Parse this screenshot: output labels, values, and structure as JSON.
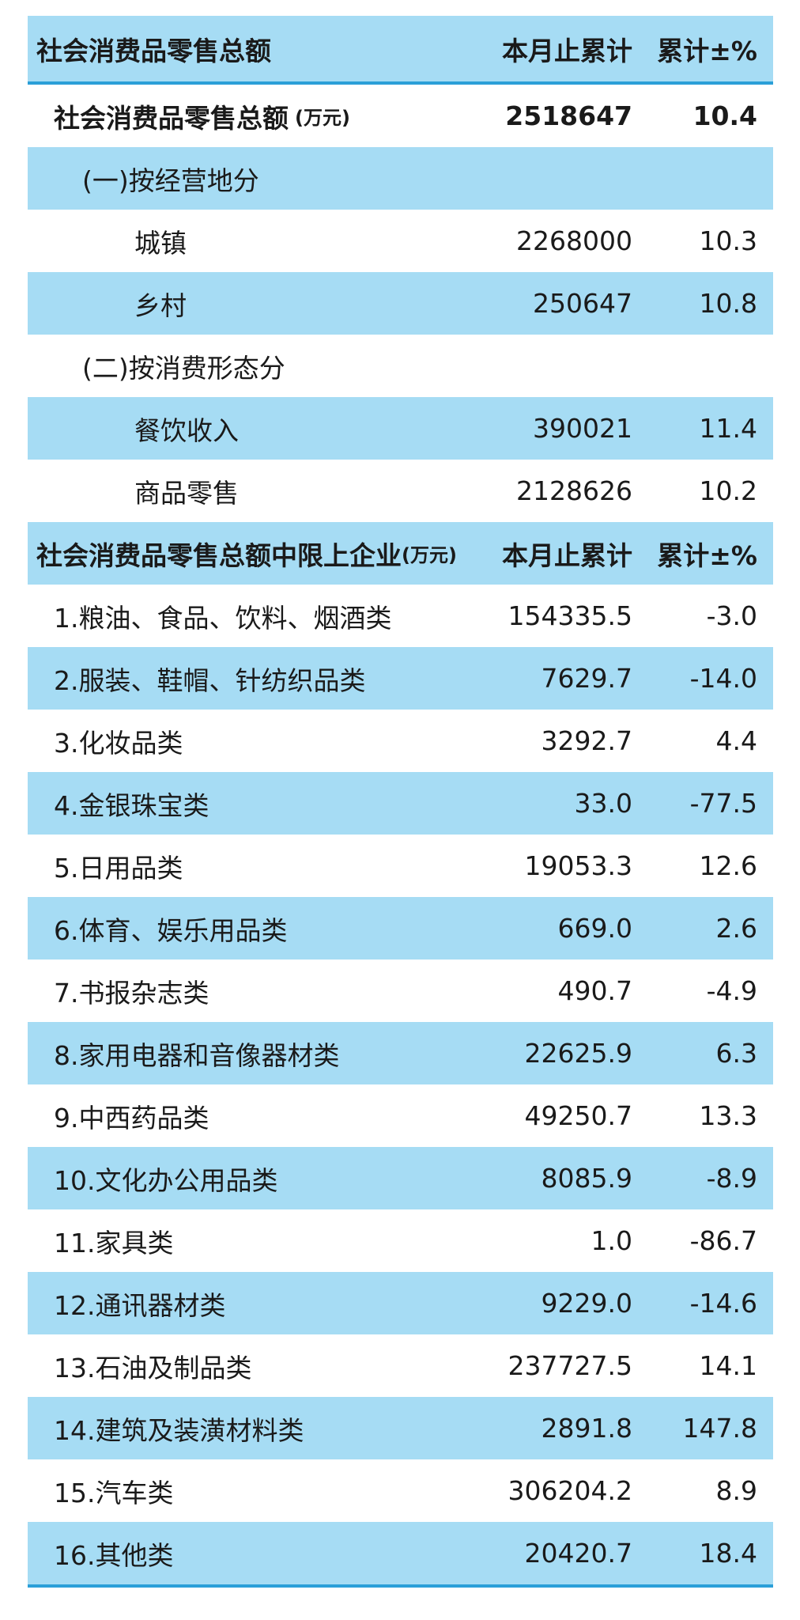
{
  "table1": {
    "header": [
      "社会消费品零售总额",
      "本月止累计",
      "累计±%"
    ],
    "total": {
      "label": "社会消费品零售总额",
      "unit": "(万元)",
      "value": "2518647",
      "change": "10.4"
    },
    "groups": [
      {
        "title": "(一)按经营地分",
        "rows": [
          [
            "城镇",
            "2268000",
            "10.3"
          ],
          [
            "乡村",
            "250647",
            "10.8"
          ]
        ]
      },
      {
        "title": "(二)按消费形态分",
        "rows": [
          [
            "餐饮收入",
            "390021",
            "11.4"
          ],
          [
            "商品零售",
            "2128626",
            "10.2"
          ]
        ]
      }
    ]
  },
  "table2": {
    "header": {
      "label": "社会消费品零售总额中限上企业",
      "unit": "(万元)",
      "value": "本月止累计",
      "change": "累计±%"
    },
    "rows": [
      [
        "1.粮油、食品、饮料、烟酒类",
        "154335.5",
        "-3.0"
      ],
      [
        "2.服装、鞋帽、针纺织品类",
        "7629.7",
        "-14.0"
      ],
      [
        "3.化妆品类",
        "3292.7",
        "4.4"
      ],
      [
        "4.金银珠宝类",
        "33.0",
        "-77.5"
      ],
      [
        "5.日用品类",
        "19053.3",
        "12.6"
      ],
      [
        "6.体育、娱乐用品类",
        "669.0",
        "2.6"
      ],
      [
        "7.书报杂志类",
        "490.7",
        "-4.9"
      ],
      [
        "8.家用电器和音像器材类",
        "22625.9",
        "6.3"
      ],
      [
        "9.中西药品类",
        "49250.7",
        "13.3"
      ],
      [
        "10.文化办公用品类",
        "8085.9",
        "-8.9"
      ],
      [
        "11.家具类",
        "1.0",
        "-86.7"
      ],
      [
        "12.通讯器材类",
        "9229.0",
        "-14.6"
      ],
      [
        "13.石油及制品类",
        "237727.5",
        "14.1"
      ],
      [
        "14.建筑及装潢材料类",
        "2891.8",
        "147.8"
      ],
      [
        "15.汽车类",
        "306204.2",
        "8.9"
      ],
      [
        "16.其他类",
        "20420.7",
        "18.4"
      ]
    ]
  }
}
